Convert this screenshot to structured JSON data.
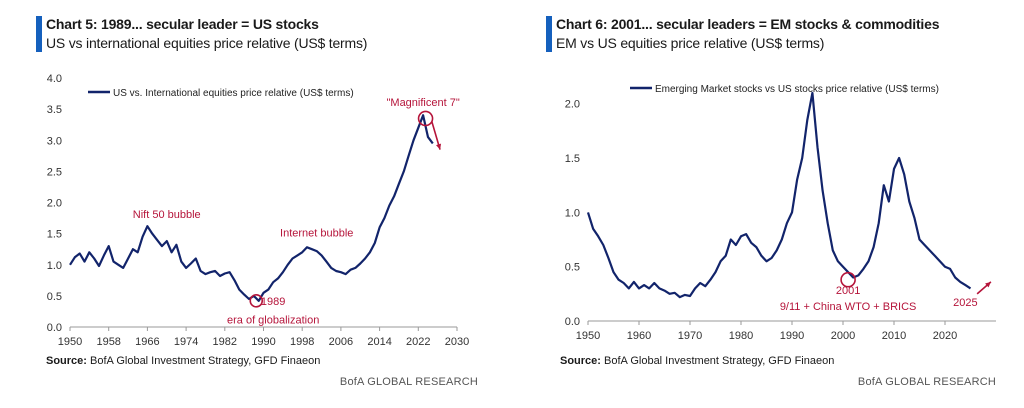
{
  "colors": {
    "series": "#12246b",
    "annotation": "#b5143a",
    "accent": "#1560bd",
    "axis": "#9a9a9a"
  },
  "chart_data": [
    {
      "type": "line",
      "title": "Chart 5: 1989... secular leader = US stocks",
      "subtitle": "US vs international equities price relative (US$ terms)",
      "legend": "US vs. International equities price relative (US$ terms)",
      "xlim": [
        1950,
        2030
      ],
      "ylim": [
        0,
        4
      ],
      "xticks": [
        1950,
        1958,
        1966,
        1974,
        1982,
        1990,
        1998,
        2006,
        2014,
        2022,
        2030
      ],
      "yticks": [
        0,
        0.5,
        1,
        1.5,
        2,
        2.5,
        3,
        3.5,
        4
      ],
      "ytick_labels": [
        "0.0",
        "0.5",
        "1.0",
        "1.5",
        "2.0",
        "2.5",
        "3.0",
        "3.5",
        "4.0"
      ],
      "series": [
        {
          "name": "US vs. International equities price relative (US$ terms)",
          "x": [
            1950,
            1951,
            1952,
            1953,
            1954,
            1955,
            1956,
            1957,
            1958,
            1959,
            1960,
            1961,
            1962,
            1963,
            1964,
            1965,
            1966,
            1967,
            1968,
            1969,
            1970,
            1971,
            1972,
            1973,
            1974,
            1975,
            1976,
            1977,
            1978,
            1979,
            1980,
            1981,
            1982,
            1983,
            1984,
            1985,
            1986,
            1987,
            1988,
            1989,
            1990,
            1991,
            1992,
            1993,
            1994,
            1995,
            1996,
            1997,
            1998,
            1999,
            2000,
            2001,
            2002,
            2003,
            2004,
            2005,
            2006,
            2007,
            2008,
            2009,
            2010,
            2011,
            2012,
            2013,
            2014,
            2015,
            2016,
            2017,
            2018,
            2019,
            2020,
            2021,
            2022,
            2023,
            2024,
            2025
          ],
          "values": [
            1.0,
            1.12,
            1.18,
            1.05,
            1.2,
            1.1,
            0.98,
            1.15,
            1.3,
            1.05,
            1.0,
            0.95,
            1.1,
            1.25,
            1.2,
            1.45,
            1.62,
            1.5,
            1.4,
            1.3,
            1.38,
            1.2,
            1.32,
            1.05,
            0.95,
            1.02,
            1.1,
            0.9,
            0.85,
            0.88,
            0.9,
            0.82,
            0.86,
            0.88,
            0.75,
            0.6,
            0.52,
            0.45,
            0.5,
            0.42,
            0.55,
            0.6,
            0.72,
            0.78,
            0.88,
            1.0,
            1.1,
            1.15,
            1.2,
            1.28,
            1.25,
            1.22,
            1.15,
            1.05,
            0.95,
            0.9,
            0.88,
            0.85,
            0.92,
            0.95,
            1.02,
            1.1,
            1.2,
            1.35,
            1.6,
            1.75,
            1.95,
            2.1,
            2.3,
            2.5,
            2.75,
            3.0,
            3.2,
            3.4,
            3.05,
            2.95
          ]
        }
      ],
      "annotations": [
        {
          "text": "Nift 50 bubble",
          "x": 1970,
          "y": 1.75
        },
        {
          "text": "Internet bubble",
          "x": 2001,
          "y": 1.45
        },
        {
          "text": "\"Magnificent 7\"",
          "x": 2023,
          "y": 3.55
        },
        {
          "text": "1989",
          "x": 1992,
          "y": 0.35
        },
        {
          "text": "era of globalization",
          "x": 1992,
          "y": 0.06
        }
      ],
      "source_label": "Source:",
      "source": "BofA Global Investment Strategy, GFD Finaeon",
      "brand": "BofA GLOBAL RESEARCH"
    },
    {
      "type": "line",
      "title": "Chart 6: 2001... secular leaders = EM stocks & commodities",
      "subtitle": "EM vs US equities price relative (US$ terms)",
      "legend": "Emerging Market stocks vs US stocks price relative (US$ terms)",
      "xlim": [
        1950,
        2030
      ],
      "ylim": [
        0,
        2.2
      ],
      "xticks": [
        1950,
        1960,
        1970,
        1980,
        1990,
        2000,
        2010,
        2020
      ],
      "yticks": [
        0,
        0.5,
        1,
        1.5,
        2
      ],
      "ytick_labels": [
        "0.0",
        "0.5",
        "1.0",
        "1.5",
        "2.0"
      ],
      "series": [
        {
          "name": "Emerging Market stocks vs US stocks price relative (US$ terms)",
          "x": [
            1950,
            1951,
            1952,
            1953,
            1954,
            1955,
            1956,
            1957,
            1958,
            1959,
            1960,
            1961,
            1962,
            1963,
            1964,
            1965,
            1966,
            1967,
            1968,
            1969,
            1970,
            1971,
            1972,
            1973,
            1974,
            1975,
            1976,
            1977,
            1978,
            1979,
            1980,
            1981,
            1982,
            1983,
            1984,
            1985,
            1986,
            1987,
            1988,
            1989,
            1990,
            1991,
            1992,
            1993,
            1994,
            1995,
            1996,
            1997,
            1998,
            1999,
            2000,
            2001,
            2002,
            2003,
            2004,
            2005,
            2006,
            2007,
            2008,
            2009,
            2010,
            2011,
            2012,
            2013,
            2014,
            2015,
            2016,
            2017,
            2018,
            2019,
            2020,
            2021,
            2022,
            2023,
            2024,
            2025
          ],
          "values": [
            1.0,
            0.85,
            0.78,
            0.7,
            0.58,
            0.45,
            0.38,
            0.35,
            0.3,
            0.36,
            0.3,
            0.33,
            0.3,
            0.35,
            0.3,
            0.28,
            0.25,
            0.26,
            0.22,
            0.24,
            0.23,
            0.3,
            0.35,
            0.32,
            0.38,
            0.45,
            0.55,
            0.6,
            0.75,
            0.7,
            0.78,
            0.8,
            0.72,
            0.68,
            0.6,
            0.55,
            0.58,
            0.65,
            0.75,
            0.9,
            1.0,
            1.3,
            1.5,
            1.85,
            2.1,
            1.6,
            1.2,
            0.9,
            0.65,
            0.55,
            0.5,
            0.45,
            0.4,
            0.42,
            0.48,
            0.55,
            0.68,
            0.9,
            1.25,
            1.1,
            1.4,
            1.5,
            1.35,
            1.1,
            0.95,
            0.75,
            0.7,
            0.65,
            0.6,
            0.55,
            0.5,
            0.48,
            0.4,
            0.36,
            0.33,
            0.3
          ]
        }
      ],
      "annotations": [
        {
          "text": "2001",
          "x": 2001,
          "y": 0.25
        },
        {
          "text": "9/11 + China WTO + BRICS",
          "x": 2001,
          "y": 0.1
        },
        {
          "text": "2025",
          "x": 2024,
          "y": 0.14
        }
      ],
      "source_label": "Source:",
      "source": "BofA Global Investment Strategy, GFD Finaeon",
      "brand": "BofA GLOBAL RESEARCH"
    }
  ]
}
